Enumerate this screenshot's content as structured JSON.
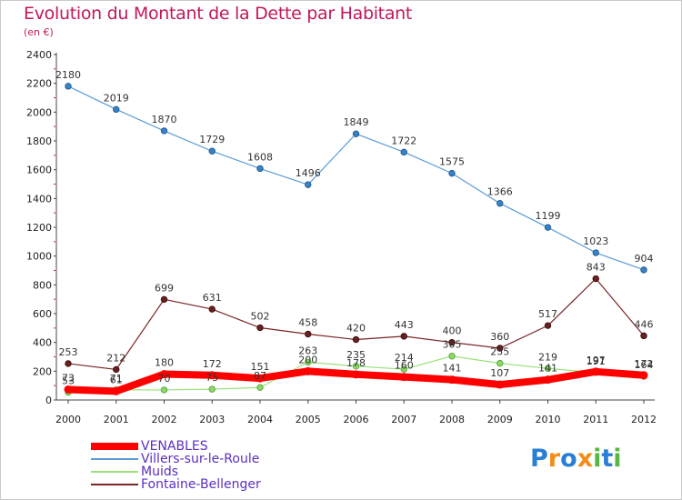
{
  "header": {
    "title": "Evolution du Montant de la Dette par Habitant",
    "subtitle": "(en €)"
  },
  "chart_data": {
    "type": "line",
    "title": "Evolution du Montant de la Dette par Habitant",
    "subtitle": "(en €)",
    "xlabel": "",
    "ylabel": "",
    "x": [
      "2000",
      "2001",
      "2002",
      "2003",
      "2004",
      "2005",
      "2006",
      "2007",
      "2008",
      "2009",
      "2010",
      "2011",
      "2012"
    ],
    "ylim": [
      0,
      2400
    ],
    "yticks": [
      0,
      200,
      400,
      600,
      800,
      1000,
      1200,
      1400,
      1600,
      1800,
      2000,
      2200,
      2400
    ],
    "grid": false,
    "legend": "bottom-left",
    "series": [
      {
        "name": "VENABLES",
        "color": "#ff0000",
        "values": [
          73,
          61,
          180,
          172,
          151,
          200,
          178,
          160,
          141,
          107,
          141,
          197,
          172
        ]
      },
      {
        "name": "Villers-sur-le-Roule",
        "color": "#5b9bd5",
        "values": [
          2180,
          2019,
          1870,
          1729,
          1608,
          1496,
          1849,
          1722,
          1575,
          1366,
          1199,
          1023,
          904
        ]
      },
      {
        "name": "Muids",
        "color": "#99e27a",
        "values": [
          53,
          71,
          70,
          75,
          87,
          263,
          235,
          214,
          305,
          255,
          219,
          191,
          164
        ]
      },
      {
        "name": "Fontaine-Bellenger",
        "color": "#7a2424",
        "values": [
          253,
          212,
          699,
          631,
          502,
          458,
          420,
          443,
          400,
          360,
          517,
          843,
          446
        ]
      }
    ]
  },
  "legend": {
    "items": [
      {
        "label": "VENABLES"
      },
      {
        "label": "Villers-sur-le-Roule"
      },
      {
        "label": "Muids"
      },
      {
        "label": "Fontaine-Bellenger"
      }
    ]
  },
  "logo": {
    "letters": [
      "P",
      "r",
      "o",
      "x",
      "i",
      "t",
      "i"
    ],
    "colors": [
      "#2a7fd4",
      "#f28c1a",
      "#2a7fd4",
      "#f28c1a",
      "#56b840",
      "#2a7fd4",
      "#56b840"
    ]
  }
}
